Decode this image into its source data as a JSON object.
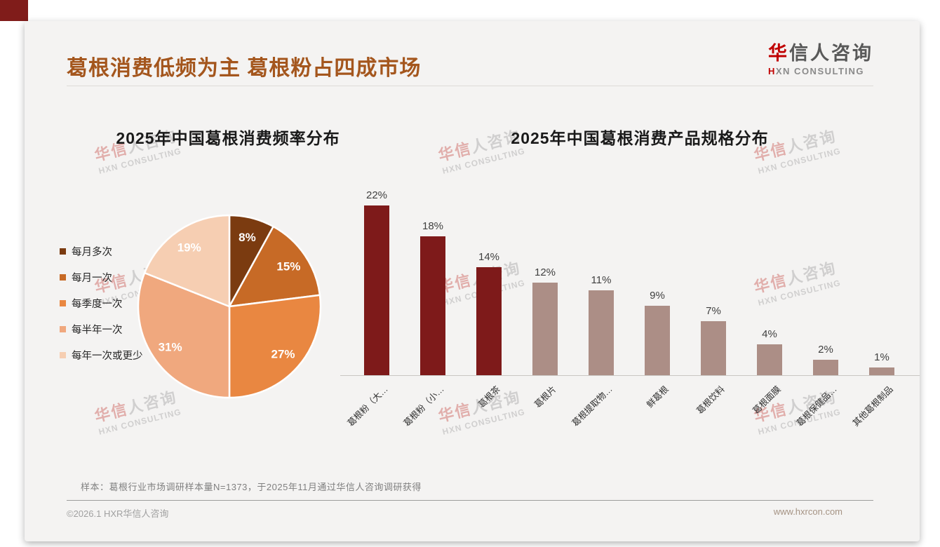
{
  "header": {
    "title": "葛根消费低频为主 葛根粉占四成市场",
    "logo_line1_accent": "华",
    "logo_line1_rest": "信人咨询",
    "logo_line2_accent": "H",
    "logo_line2_rest": "XN CONSULTING"
  },
  "watermark": {
    "line1_accent": "华信",
    "line1_rest": "人咨询",
    "line2": "HXN CONSULTING"
  },
  "chart_data": [
    {
      "type": "pie",
      "title": "2025年中国葛根消费频率分布",
      "labels": [
        "每月多次",
        "每月一次",
        "每季度一次",
        "每半年一次",
        "每年一次或更少"
      ],
      "values": [
        8,
        15,
        27,
        31,
        19
      ],
      "unit": "%",
      "colors": [
        "#7B3B10",
        "#C76A26",
        "#E98741",
        "#F0A87E",
        "#F6CEB2"
      ],
      "legend_position": "left",
      "start_angle_deg": 0,
      "direction": "clockwise",
      "slice_border_color": "#FFFFFF"
    },
    {
      "type": "bar",
      "title": "2025年中国葛根消费产品规格分布",
      "categories": [
        "葛根粉（大…",
        "葛根粉（小…",
        "葛根茶",
        "葛根片",
        "葛根提取物…",
        "鲜葛根",
        "葛根饮料",
        "葛根面膜",
        "葛根保健品…",
        "其他葛根制品"
      ],
      "values": [
        22,
        18,
        14,
        12,
        11,
        9,
        7,
        4,
        2,
        1
      ],
      "unit": "%",
      "bar_colors": [
        "#7E1A1A",
        "#7E1A1A",
        "#7E1A1A",
        "#AC8E86",
        "#AC8E86",
        "#AC8E86",
        "#AC8E86",
        "#AC8E86",
        "#AC8E86",
        "#AC8E86"
      ],
      "ylim": [
        0,
        24
      ],
      "gridlines": false,
      "data_labels": true
    }
  ],
  "footnote": "样本：葛根行业市场调研样本量N=1373，于2025年11月通过华信人咨询调研获得",
  "footer": {
    "left": "©2026.1 HXR华信人咨询",
    "right": "www.hxrcon.com"
  }
}
